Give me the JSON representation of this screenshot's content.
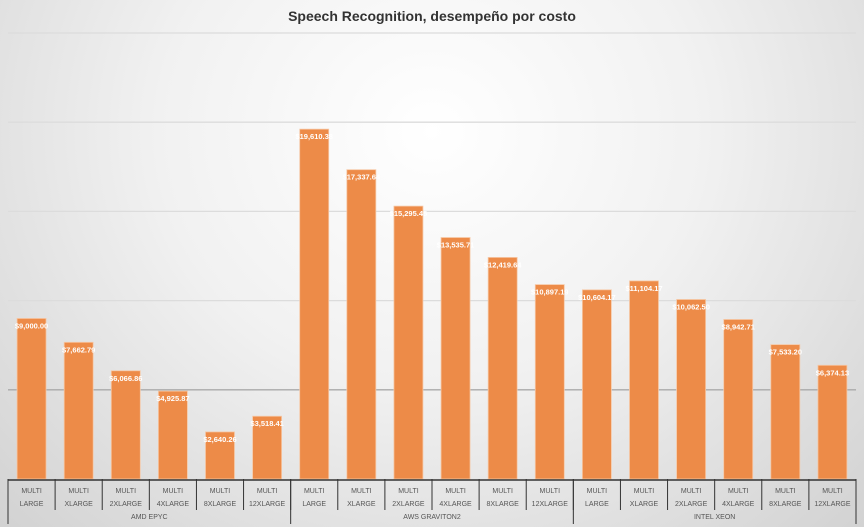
{
  "chart_data": {
    "type": "bar",
    "title": "Speech Recognition, desempeño por costo",
    "xlabel": "",
    "ylabel": "",
    "ylim": [
      0,
      25000
    ],
    "grid": true,
    "legend": "none",
    "bar_color": "#ED8B48",
    "groups": [
      {
        "name": "AMD EPYC",
        "count": 6
      },
      {
        "name": "AWS GRAVITON2",
        "count": 6
      },
      {
        "name": "INTEL XEON",
        "count": 6
      }
    ],
    "categories": [
      [
        "MULTI",
        "LARGE"
      ],
      [
        "MULTI",
        "XLARGE"
      ],
      [
        "MULTI",
        "2XLARGE"
      ],
      [
        "MULTI",
        "4XLARGE"
      ],
      [
        "MULTI",
        "8XLARGE"
      ],
      [
        "MULTI",
        "12XLARGE"
      ],
      [
        "MULTI",
        "LARGE"
      ],
      [
        "MULTI",
        "XLARGE"
      ],
      [
        "MULTI",
        "2XLARGE"
      ],
      [
        "MULTI",
        "4XLARGE"
      ],
      [
        "MULTI",
        "8XLARGE"
      ],
      [
        "MULTI",
        "12XLARGE"
      ],
      [
        "MULTI",
        "LARGE"
      ],
      [
        "MULTI",
        "XLARGE"
      ],
      [
        "MULTI",
        "2XLARGE"
      ],
      [
        "MULTI",
        "4XLARGE"
      ],
      [
        "MULTI",
        "8XLARGE"
      ],
      [
        "MULTI",
        "12XLARGE"
      ]
    ],
    "values": [
      9000.0,
      7662.79,
      6066.86,
      4925.87,
      2640.26,
      3518.41,
      19610.38,
      17337.64,
      15295.45,
      13535.71,
      12419.64,
      10897.19,
      10604.17,
      11104.17,
      10062.5,
      8942.71,
      7533.2,
      6374.13
    ],
    "data_labels": [
      "$9,000.00",
      "$7,662.79",
      "$6,066.86",
      "$4,925.87",
      "$2,640.26",
      "$3,518.41",
      "$19,610.38",
      "$17,337.64",
      "$15,295.45",
      "$13,535.71",
      "$12,419.64",
      "$10,897.19",
      "$10,604.17",
      "$11,104.17",
      "$10,062.50",
      "$8,942.71",
      "$7,533.20",
      "$6,374.13"
    ]
  }
}
